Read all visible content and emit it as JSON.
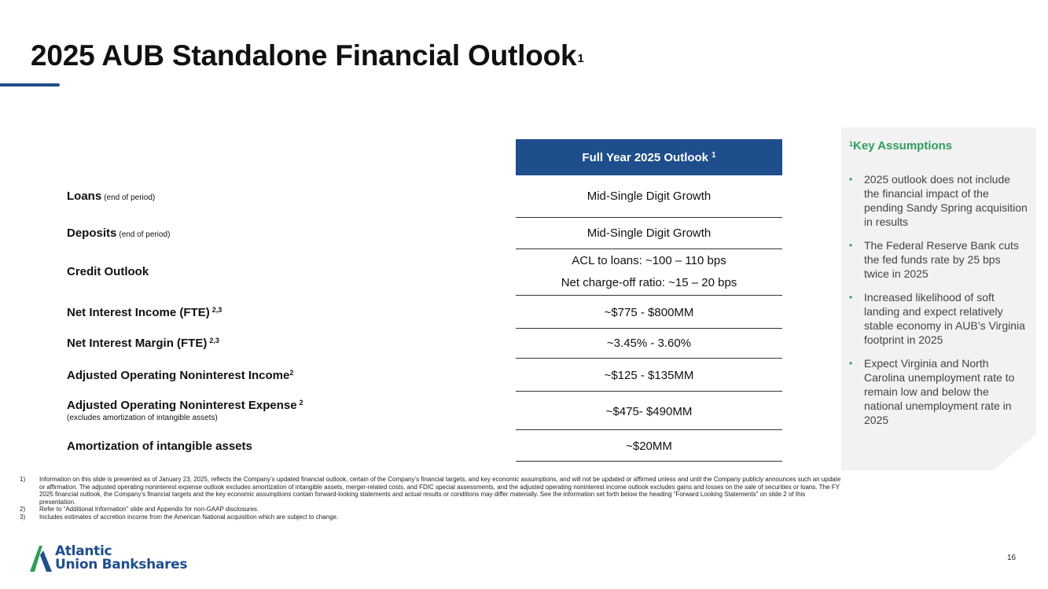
{
  "title": {
    "text": "2025 AUB Standalone Financial Outlook",
    "superscript": "1"
  },
  "table": {
    "header": "Full Year 2025 Outlook",
    "header_sup": "1",
    "rows": [
      {
        "label": "Loans",
        "note": "(end of period)",
        "value": "Mid-Single Digit Growth"
      },
      {
        "label": "Deposits",
        "note": "(end of period)",
        "value": "Mid-Single Digit Growth"
      },
      {
        "label": "Credit Outlook",
        "value_line1": "ACL to loans:  ~100 – 110 bps",
        "value_line2": "Net charge-off ratio: ~15 – 20 bps"
      },
      {
        "label": "Net Interest Income (FTE)",
        "sup": "2,3",
        "value": "~$775 - $800MM"
      },
      {
        "label": "Net Interest Margin (FTE)",
        "sup": "2,3",
        "value": "~3.45% - 3.60%"
      },
      {
        "label": "Adjusted Operating Noninterest Income",
        "sup": "2",
        "value": "~$125 - $135MM"
      },
      {
        "label": "Adjusted Operating Noninterest Expense",
        "sup": "2",
        "sub": "(excludes amortization of intangible assets)",
        "value": "~$475- $490MM"
      },
      {
        "label": "Amortization of intangible assets",
        "value": "~$20MM"
      }
    ]
  },
  "assumptions": {
    "title_sup": "1",
    "title": "Key Assumptions",
    "items": [
      "2025 outlook does not include the financial impact of the pending Sandy Spring acquisition in results",
      "The Federal Reserve Bank cuts the fed funds rate by 25 bps twice in 2025",
      "Increased likelihood of soft landing and expect relatively stable economy in AUB’s Virginia footprint in 2025",
      "Expect Virginia and North Carolina unemployment rate to remain low and below the national unemployment rate in 2025"
    ]
  },
  "footnotes": [
    {
      "num": "1)",
      "text": "Information on this slide is presented as of January 23, 2025, reflects the Company’s updated financial outlook, certain of the Company’s financial targets, and key economic assumptions, and will not be updated or affirmed unless and until the Company publicly announces such an update or affirmation. The adjusted operating noninterest expense outlook excludes amortization of intangible assets, merger-related costs, and FDIC special assessments, and the adjusted operating noninterest income outlook excludes gains and losses on the sale of securities or loans.  The FY 2025 financial outlook, the Company’s financial targets and the key economic assumptions contain forward-looking statements and actual results or conditions may differ materially.  See the information set forth below the heading “Forward Looking Statements” on slide 2 of this presentation."
    },
    {
      "num": "2)",
      "text": "Refer to “Additional Information” slide and Appendix for non-GAAP disclosures."
    },
    {
      "num": "3)",
      "text": "Includes estimates of accretion income from the American National acquisition which are subject to change."
    }
  ],
  "logo": {
    "line1": "Atlantic",
    "line2": "Union Bankshares"
  },
  "page_number": "16",
  "colors": {
    "brand_blue": "#1f4e8c",
    "accent_green": "#2e9e5b"
  }
}
